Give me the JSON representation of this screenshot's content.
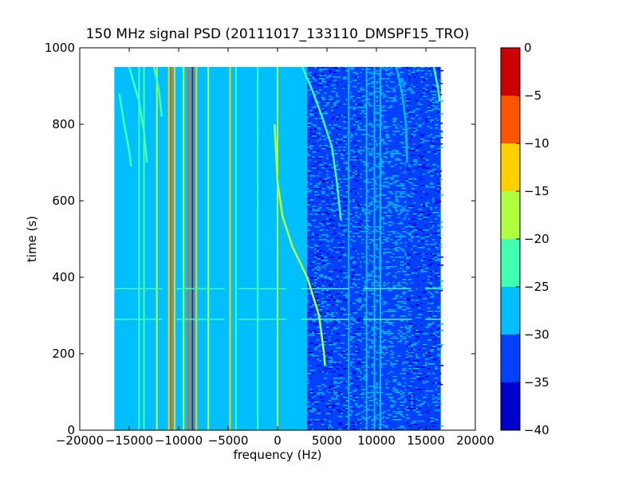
{
  "chart_data": {
    "type": "heatmap",
    "title": "150 MHz signal PSD (20111017_133110_DMSPF15_TRO)",
    "xlabel": "frequency (Hz)",
    "ylabel": "time (s)",
    "xlim": [
      -20000,
      20000
    ],
    "ylim": [
      0,
      1000
    ],
    "xticks": [
      -20000,
      -15000,
      -10000,
      -5000,
      0,
      5000,
      10000,
      15000,
      20000
    ],
    "xtick_labels": [
      "−20000",
      "−15000",
      "−10000",
      "−5000",
      "0",
      "5000",
      "10000",
      "15000",
      "20000"
    ],
    "yticks": [
      0,
      200,
      400,
      600,
      800,
      1000
    ],
    "ytick_labels": [
      "0",
      "200",
      "400",
      "600",
      "800",
      "1000"
    ],
    "data_extent": {
      "freq_min": -16500,
      "freq_max": 16500,
      "time_min": 0,
      "time_max": 950
    },
    "colorbar": {
      "range": [
        -40,
        0
      ],
      "ticks": [
        0,
        -5,
        -10,
        -15,
        -20,
        -25,
        -30,
        -35,
        -40
      ],
      "tick_labels": [
        "0",
        "−5",
        "−10",
        "−15",
        "−20",
        "−25",
        "−30",
        "−35",
        "−40"
      ],
      "bins": [
        {
          "from": -40,
          "to": -35,
          "color": "#0000cd"
        },
        {
          "from": -35,
          "to": -30,
          "color": "#0040ff"
        },
        {
          "from": -30,
          "to": -25,
          "color": "#00bfff"
        },
        {
          "from": -25,
          "to": -20,
          "color": "#40ffb0"
        },
        {
          "from": -20,
          "to": -15,
          "color": "#b0ff40"
        },
        {
          "from": -15,
          "to": -10,
          "color": "#ffd000"
        },
        {
          "from": -10,
          "to": -5,
          "color": "#ff5500"
        },
        {
          "from": -5,
          "to": 0,
          "color": "#cc0000"
        }
      ]
    },
    "background_level_db": -27,
    "noise_regions": [
      {
        "freq_from": 3000,
        "freq_to": 8500,
        "level_db": -31
      },
      {
        "freq_from": 8500,
        "freq_to": 13000,
        "level_db": -35
      },
      {
        "freq_from": 13000,
        "freq_to": 16500,
        "level_db": -31
      }
    ],
    "constant_lines": [
      {
        "freq": -16000,
        "level_db": -27
      },
      {
        "freq": -14000,
        "level_db": -22
      },
      {
        "freq": -13500,
        "level_db": -22
      },
      {
        "freq": -12200,
        "level_db": -18
      },
      {
        "freq": -11000,
        "level_db": -13
      },
      {
        "freq": -10800,
        "level_db": -8
      },
      {
        "freq": -10400,
        "level_db": -13
      },
      {
        "freq": -9500,
        "level_db": -18
      },
      {
        "freq": -9000,
        "level_db": -8
      },
      {
        "freq": -8600,
        "level_db": -3
      },
      {
        "freq": -8200,
        "level_db": -13
      },
      {
        "freq": -7000,
        "level_db": -18
      },
      {
        "freq": -4800,
        "level_db": -13
      },
      {
        "freq": -4200,
        "level_db": -22
      },
      {
        "freq": -2000,
        "level_db": -22
      },
      {
        "freq": 0,
        "level_db": -18
      },
      {
        "freq": 7200,
        "level_db": -27
      },
      {
        "freq": 9000,
        "level_db": -27
      },
      {
        "freq": 9800,
        "level_db": -27
      },
      {
        "freq": 10400,
        "level_db": -27
      }
    ],
    "horizontal_lines": [
      {
        "time": 370,
        "level_db": -22
      },
      {
        "time": 290,
        "level_db": -22
      }
    ],
    "drifting_tracks": [
      {
        "points": [
          [
            -300,
            800
          ],
          [
            0,
            650
          ],
          [
            500,
            560
          ],
          [
            1500,
            480
          ],
          [
            3000,
            400
          ],
          [
            4200,
            300
          ],
          [
            4700,
            200
          ],
          [
            4800,
            170
          ]
        ],
        "level_db": -18
      },
      {
        "points": [
          [
            -16000,
            880
          ],
          [
            -15500,
            800
          ],
          [
            -15000,
            730
          ],
          [
            -14800,
            690
          ]
        ],
        "level_db": -22
      },
      {
        "points": [
          [
            -15000,
            950
          ],
          [
            -14000,
            860
          ],
          [
            -13500,
            780
          ],
          [
            -13200,
            700
          ]
        ],
        "level_db": -22
      },
      {
        "points": [
          [
            -12500,
            950
          ],
          [
            -12000,
            890
          ],
          [
            -11700,
            820
          ]
        ],
        "level_db": -22
      },
      {
        "points": [
          [
            2500,
            950
          ],
          [
            3500,
            890
          ],
          [
            4500,
            820
          ],
          [
            5500,
            740
          ],
          [
            6000,
            650
          ],
          [
            6400,
            550
          ]
        ],
        "level_db": -22
      },
      {
        "points": [
          [
            12000,
            950
          ],
          [
            12600,
            880
          ],
          [
            13000,
            800
          ],
          [
            13100,
            700
          ]
        ],
        "level_db": -27
      },
      {
        "points": [
          [
            15800,
            950
          ],
          [
            16200,
            900
          ],
          [
            16400,
            860
          ]
        ],
        "level_db": -22
      }
    ]
  }
}
